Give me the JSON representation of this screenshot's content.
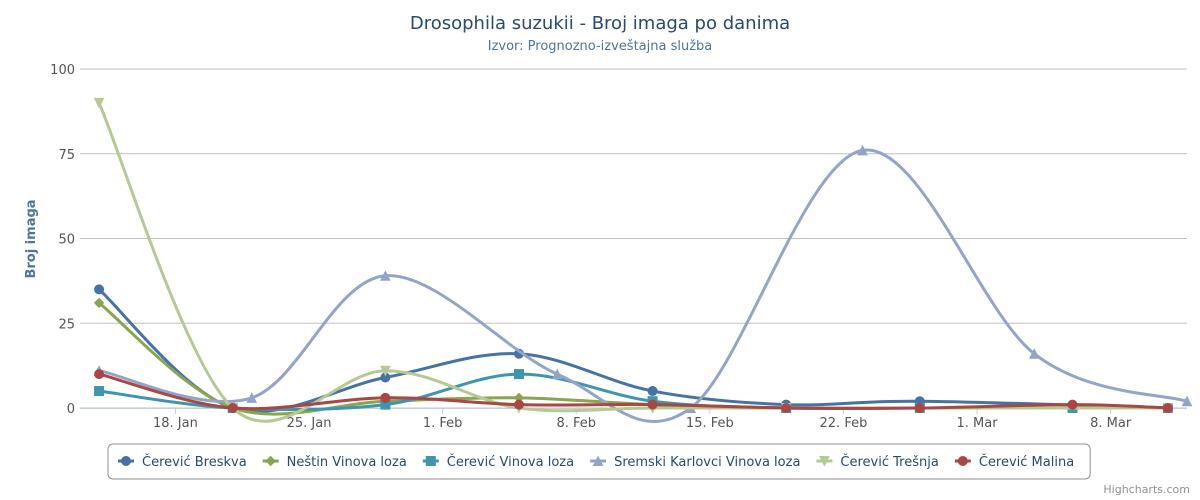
{
  "chart_data": {
    "type": "line",
    "title": "Drosophila suzukii - Broj imaga po danima",
    "subtitle": "Izvor: Prognozno-izveštajna služba",
    "ylabel": "Broj imaga",
    "xlabel": "",
    "ylim": [
      0,
      100
    ],
    "yticks": [
      0,
      25,
      50,
      75,
      100
    ],
    "xlim": [
      "2014-01-13",
      "2014-03-12"
    ],
    "xticks": [
      {
        "date": "2014-01-18",
        "label": "18. Jan"
      },
      {
        "date": "2014-01-25",
        "label": "25. Jan"
      },
      {
        "date": "2014-02-01",
        "label": "1. Feb"
      },
      {
        "date": "2014-02-08",
        "label": "8. Feb"
      },
      {
        "date": "2014-02-15",
        "label": "15. Feb"
      },
      {
        "date": "2014-02-22",
        "label": "22. Feb"
      },
      {
        "date": "2014-03-01",
        "label": "1. Mar"
      },
      {
        "date": "2014-03-08",
        "label": "8. Mar"
      }
    ],
    "grid": true,
    "legend_position": "bottom",
    "series": [
      {
        "name": "Čerević Breskva",
        "color": "#4572A7",
        "marker": "circle",
        "points": [
          [
            "2014-01-14",
            35
          ],
          [
            "2014-01-21",
            0
          ],
          [
            "2014-01-29",
            9
          ],
          [
            "2014-02-05",
            16
          ],
          [
            "2014-02-12",
            5
          ],
          [
            "2014-02-19",
            1
          ],
          [
            "2014-02-26",
            2
          ],
          [
            "2014-03-11",
            0
          ]
        ]
      },
      {
        "name": "Neštin Vinova loza",
        "color": "#89A54E",
        "marker": "diamond",
        "points": [
          [
            "2014-01-14",
            31
          ],
          [
            "2014-01-21",
            0
          ],
          [
            "2014-01-29",
            2
          ],
          [
            "2014-02-05",
            3
          ],
          [
            "2014-02-12",
            1
          ],
          [
            "2014-02-19",
            0
          ],
          [
            "2014-02-26",
            0
          ],
          [
            "2014-03-11",
            0
          ]
        ]
      },
      {
        "name": "Čerević Vinova loza",
        "color": "#3D96AE",
        "marker": "square",
        "points": [
          [
            "2014-01-14",
            5
          ],
          [
            "2014-01-21",
            0
          ],
          [
            "2014-01-29",
            1
          ],
          [
            "2014-02-05",
            10
          ],
          [
            "2014-02-12",
            2
          ],
          [
            "2014-02-19",
            0
          ],
          [
            "2014-02-26",
            0
          ],
          [
            "2014-03-06",
            0
          ],
          [
            "2014-03-11",
            0
          ]
        ]
      },
      {
        "name": "Sremski Karlovci Vinova loza",
        "color": "#93A4C9",
        "marker": "triangle",
        "points": [
          [
            "2014-01-14",
            11
          ],
          [
            "2014-01-22",
            3
          ],
          [
            "2014-01-29",
            39
          ],
          [
            "2014-02-07",
            10
          ],
          [
            "2014-02-14",
            0
          ],
          [
            "2014-02-23",
            76
          ],
          [
            "2014-03-04",
            16
          ],
          [
            "2014-03-12",
            2
          ]
        ]
      },
      {
        "name": "Čerević Trešnja",
        "color": "#B5CA92",
        "marker": "triangle-down",
        "points": [
          [
            "2014-01-14",
            90
          ],
          [
            "2014-01-21",
            0
          ],
          [
            "2014-01-29",
            11
          ],
          [
            "2014-02-05",
            0
          ],
          [
            "2014-02-12",
            0
          ],
          [
            "2014-02-19",
            0
          ],
          [
            "2014-03-11",
            0
          ]
        ]
      },
      {
        "name": "Čerević Malina",
        "color": "#AA4643",
        "marker": "circle",
        "points": [
          [
            "2014-01-14",
            10
          ],
          [
            "2014-01-21",
            0
          ],
          [
            "2014-01-29",
            3
          ],
          [
            "2014-02-05",
            1
          ],
          [
            "2014-02-12",
            1
          ],
          [
            "2014-02-19",
            0
          ],
          [
            "2014-02-26",
            0
          ],
          [
            "2014-03-06",
            1
          ],
          [
            "2014-03-11",
            0
          ]
        ]
      }
    ]
  },
  "credits": "Highcharts.com"
}
